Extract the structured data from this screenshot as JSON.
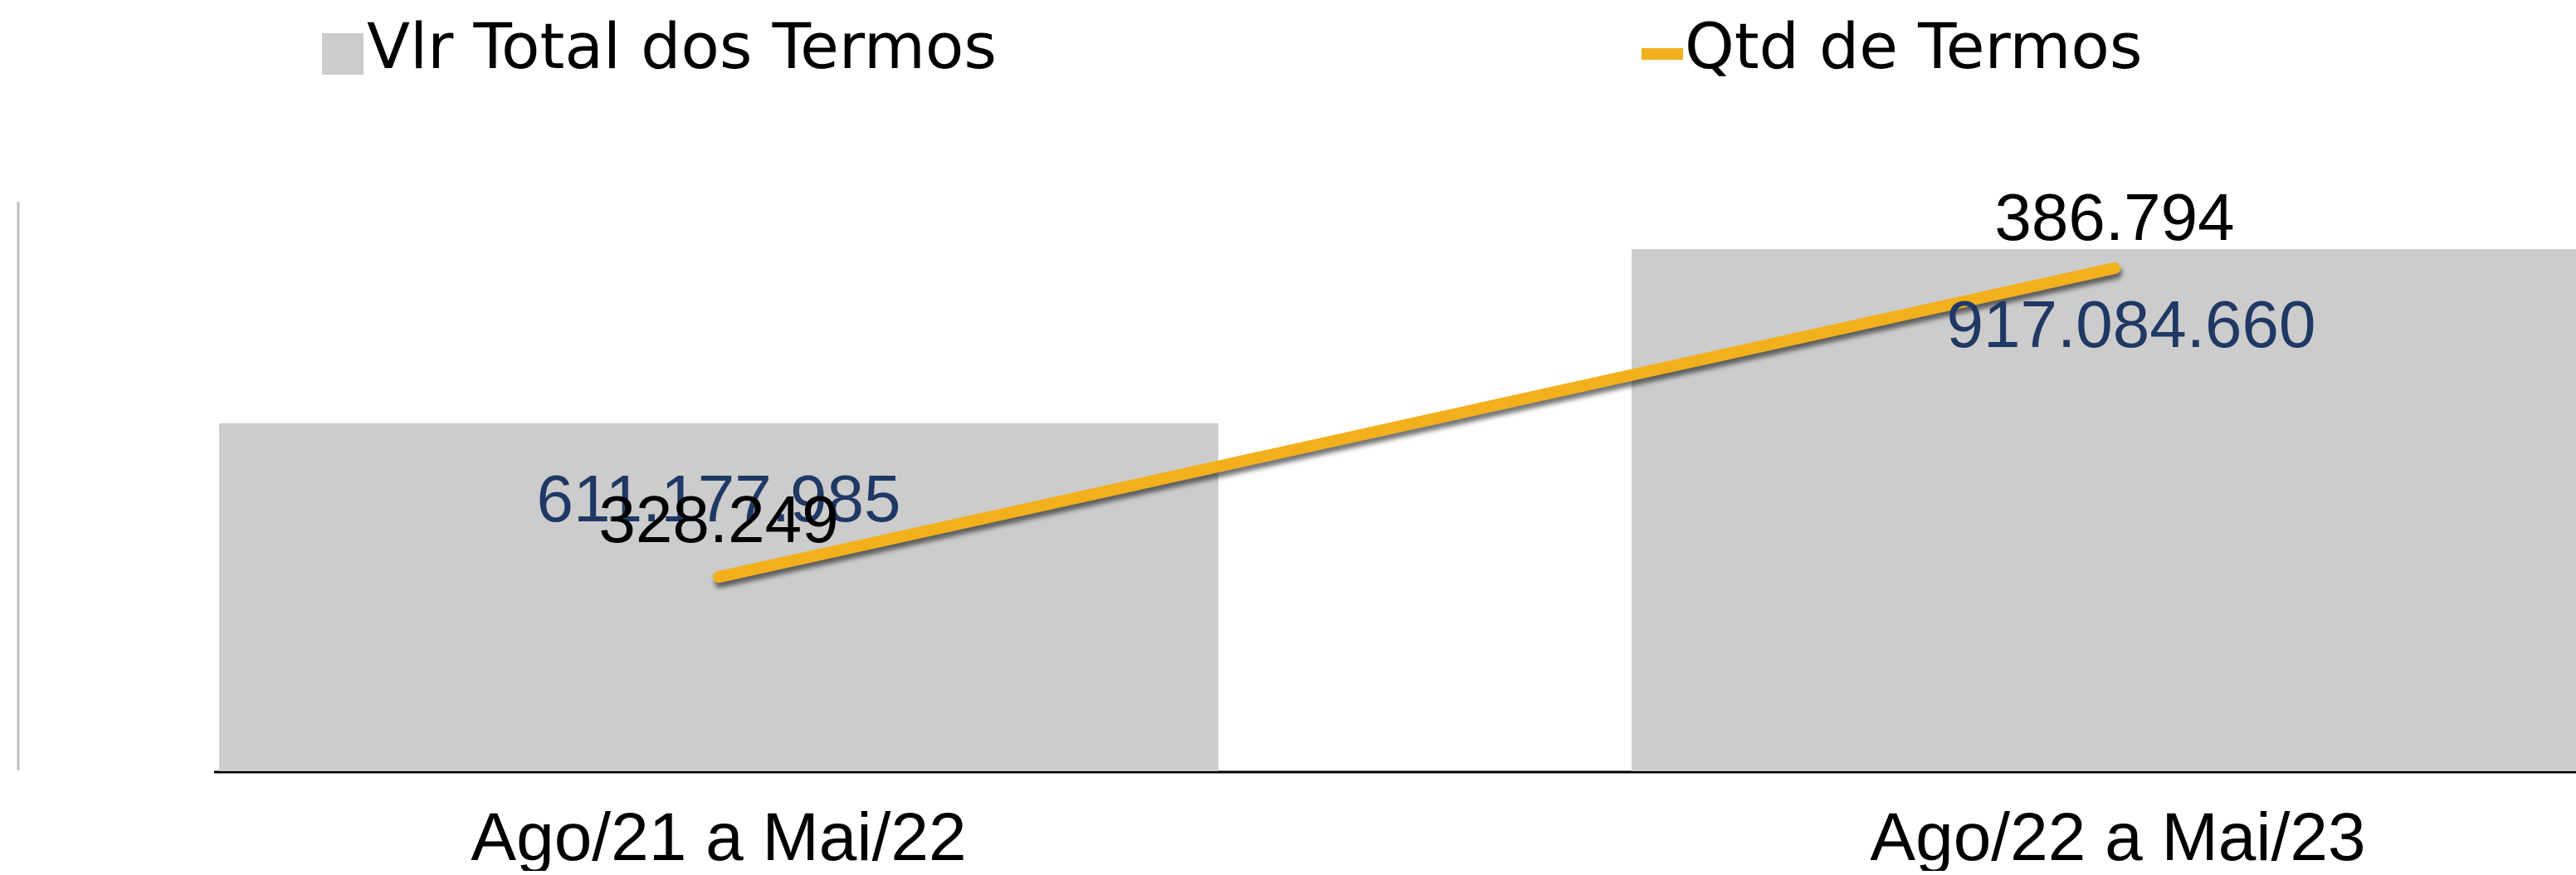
{
  "chart_data": {
    "type": "bar",
    "categories": [
      "Ago/21 a Mai/22",
      "Ago/22 a Mai/23"
    ],
    "series": [
      {
        "name": "Vlr Total dos Termos",
        "type": "bar",
        "axis": "primary",
        "values": [
          611177985,
          917084660
        ],
        "labels": [
          "611.177.985",
          "917.084.660"
        ],
        "color": "#cccccc"
      },
      {
        "name": "Qtd de Termos",
        "type": "line",
        "axis": "secondary",
        "values": [
          328249,
          386794
        ],
        "labels": [
          "328.249",
          "386.794"
        ],
        "color": "#f2b01e"
      }
    ],
    "legend_position": "top",
    "grid": false
  },
  "colors": {
    "bar_fill": "#cccccc",
    "line": "#f2b01e",
    "bar_label": "#1f3864",
    "line_label": "#000000",
    "axis": "#bfbfbf"
  }
}
